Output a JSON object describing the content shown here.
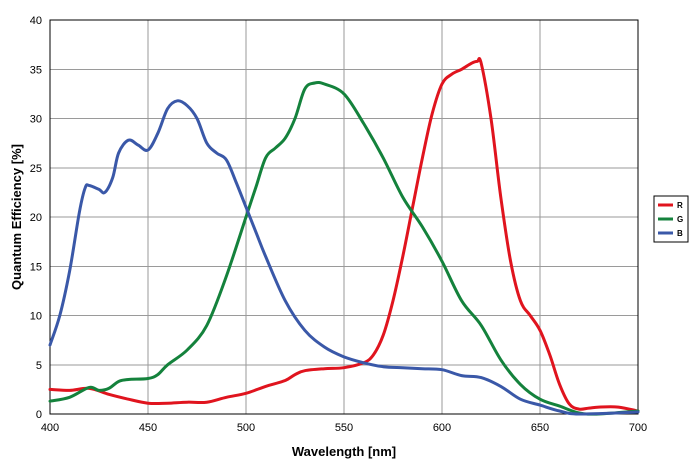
{
  "chart_data": {
    "type": "line",
    "title": "",
    "xlabel": "Wavelength [nm]",
    "ylabel": "Quantum Efficiency [%]",
    "xlim": [
      400,
      700
    ],
    "ylim": [
      0,
      40
    ],
    "x_ticks": [
      400,
      450,
      500,
      550,
      600,
      650,
      700
    ],
    "y_ticks": [
      0,
      5,
      10,
      15,
      20,
      25,
      30,
      35,
      40
    ],
    "grid": true,
    "legend_position": "right",
    "series": [
      {
        "name": "R",
        "color": "#e0141e",
        "points": [
          [
            400,
            2.5
          ],
          [
            410,
            2.4
          ],
          [
            420,
            2.6
          ],
          [
            430,
            2.0
          ],
          [
            440,
            1.5
          ],
          [
            450,
            1.1
          ],
          [
            460,
            1.1
          ],
          [
            470,
            1.2
          ],
          [
            480,
            1.2
          ],
          [
            490,
            1.7
          ],
          [
            500,
            2.1
          ],
          [
            510,
            2.8
          ],
          [
            520,
            3.4
          ],
          [
            525,
            4.0
          ],
          [
            530,
            4.4
          ],
          [
            540,
            4.6
          ],
          [
            550,
            4.7
          ],
          [
            560,
            5.2
          ],
          [
            565,
            6.0
          ],
          [
            570,
            8.0
          ],
          [
            575,
            11.5
          ],
          [
            580,
            16.0
          ],
          [
            585,
            21.0
          ],
          [
            590,
            26.0
          ],
          [
            595,
            30.5
          ],
          [
            600,
            33.5
          ],
          [
            605,
            34.5
          ],
          [
            610,
            35.0
          ],
          [
            615,
            35.6
          ],
          [
            618,
            35.8
          ],
          [
            620,
            35.6
          ],
          [
            625,
            30.0
          ],
          [
            630,
            22.0
          ],
          [
            635,
            15.5
          ],
          [
            640,
            11.5
          ],
          [
            645,
            10.0
          ],
          [
            650,
            8.5
          ],
          [
            655,
            6.0
          ],
          [
            660,
            3.0
          ],
          [
            665,
            1.0
          ],
          [
            670,
            0.5
          ],
          [
            675,
            0.6
          ],
          [
            680,
            0.7
          ],
          [
            690,
            0.7
          ],
          [
            700,
            0.3
          ]
        ]
      },
      {
        "name": "G",
        "color": "#14823c",
        "points": [
          [
            400,
            1.3
          ],
          [
            410,
            1.7
          ],
          [
            420,
            2.7
          ],
          [
            425,
            2.4
          ],
          [
            430,
            2.6
          ],
          [
            435,
            3.3
          ],
          [
            440,
            3.5
          ],
          [
            450,
            3.6
          ],
          [
            455,
            4.0
          ],
          [
            460,
            5.0
          ],
          [
            470,
            6.5
          ],
          [
            480,
            9.0
          ],
          [
            490,
            14.0
          ],
          [
            500,
            20.0
          ],
          [
            505,
            23.0
          ],
          [
            510,
            26.0
          ],
          [
            515,
            27.0
          ],
          [
            520,
            28.0
          ],
          [
            525,
            30.0
          ],
          [
            530,
            33.0
          ],
          [
            535,
            33.6
          ],
          [
            540,
            33.5
          ],
          [
            550,
            32.5
          ],
          [
            560,
            29.5
          ],
          [
            570,
            26.0
          ],
          [
            580,
            22.0
          ],
          [
            590,
            19.0
          ],
          [
            600,
            15.5
          ],
          [
            610,
            11.5
          ],
          [
            620,
            9.0
          ],
          [
            630,
            5.5
          ],
          [
            640,
            3.0
          ],
          [
            650,
            1.5
          ],
          [
            660,
            0.8
          ],
          [
            670,
            0.1
          ],
          [
            680,
            0.0
          ],
          [
            700,
            0.3
          ]
        ]
      },
      {
        "name": "B",
        "color": "#3a58a8",
        "points": [
          [
            400,
            7.0
          ],
          [
            405,
            10.0
          ],
          [
            410,
            14.5
          ],
          [
            415,
            20.5
          ],
          [
            418,
            23.0
          ],
          [
            420,
            23.2
          ],
          [
            425,
            22.8
          ],
          [
            428,
            22.5
          ],
          [
            432,
            24.0
          ],
          [
            435,
            26.5
          ],
          [
            440,
            27.8
          ],
          [
            445,
            27.3
          ],
          [
            450,
            26.8
          ],
          [
            455,
            28.5
          ],
          [
            460,
            31.0
          ],
          [
            465,
            31.8
          ],
          [
            470,
            31.3
          ],
          [
            475,
            30.0
          ],
          [
            480,
            27.5
          ],
          [
            485,
            26.5
          ],
          [
            490,
            25.8
          ],
          [
            495,
            23.5
          ],
          [
            500,
            21.0
          ],
          [
            505,
            18.5
          ],
          [
            510,
            16.0
          ],
          [
            520,
            11.5
          ],
          [
            530,
            8.5
          ],
          [
            540,
            6.8
          ],
          [
            550,
            5.8
          ],
          [
            560,
            5.2
          ],
          [
            570,
            4.8
          ],
          [
            580,
            4.7
          ],
          [
            590,
            4.6
          ],
          [
            600,
            4.5
          ],
          [
            610,
            3.9
          ],
          [
            620,
            3.7
          ],
          [
            630,
            2.8
          ],
          [
            640,
            1.5
          ],
          [
            650,
            0.9
          ],
          [
            660,
            0.3
          ],
          [
            670,
            0.0
          ],
          [
            700,
            0.2
          ]
        ]
      }
    ]
  }
}
